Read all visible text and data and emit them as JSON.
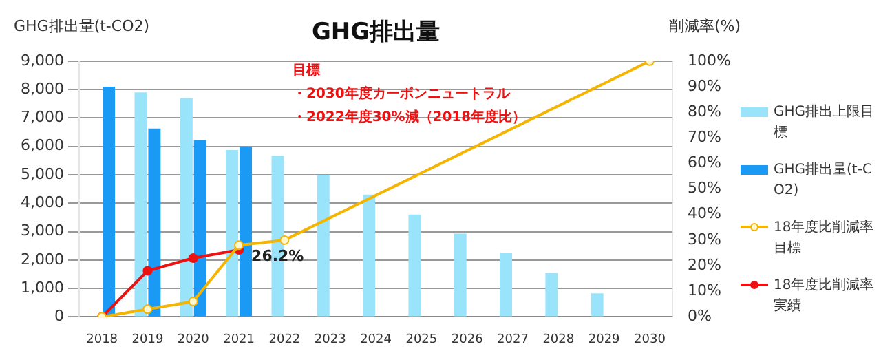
{
  "chart_data": {
    "type": "bar",
    "title": "GHG排出量",
    "ylabel": "GHG排出量(t-CO2)",
    "y2label": "削減率(%)",
    "categories": [
      "2018",
      "2019",
      "2020",
      "2021",
      "2022",
      "2023",
      "2024",
      "2025",
      "2026",
      "2027",
      "2028",
      "2029",
      "2030"
    ],
    "series": [
      {
        "name": "GHG排出上限目標",
        "color": "#99e3fb",
        "values": [
          null,
          7900,
          7700,
          5870,
          5670,
          5000,
          4300,
          3600,
          2930,
          2250,
          1550,
          830,
          null
        ]
      },
      {
        "name": "GHG排出量(t-CO2)",
        "color": "#1a9af5",
        "values": [
          8100,
          6630,
          6220,
          6000,
          null,
          null,
          null,
          null,
          null,
          null,
          null,
          null,
          null
        ]
      },
      {
        "name": "18年度比削減率目標",
        "type": "line",
        "axis": "y2",
        "color": "#f5b400",
        "marker": "circle",
        "values": [
          0,
          3,
          6,
          28,
          30,
          null,
          null,
          null,
          null,
          null,
          null,
          null,
          100
        ]
      },
      {
        "name": "18年度比削減率実績",
        "type": "line",
        "axis": "y2",
        "color": "#ee1111",
        "marker": "circle",
        "values": [
          0,
          18,
          23,
          26.2,
          null,
          null,
          null,
          null,
          null,
          null,
          null,
          null,
          null
        ],
        "value_labels": [
          null,
          null,
          null,
          "26.2%",
          null,
          null,
          null,
          null,
          null,
          null,
          null,
          null,
          null
        ]
      }
    ],
    "ylim": [
      0,
      9000
    ],
    "yticks": [
      {
        "value": 0,
        "label": "0"
      },
      {
        "value": 1000,
        "label": "1,000"
      },
      {
        "value": 2000,
        "label": "2,000"
      },
      {
        "value": 3000,
        "label": "3,000"
      },
      {
        "value": 4000,
        "label": "4,000"
      },
      {
        "value": 5000,
        "label": "5,000"
      },
      {
        "value": 6000,
        "label": "6,000"
      },
      {
        "value": 7000,
        "label": "7,000"
      },
      {
        "value": 8000,
        "label": "8,000"
      },
      {
        "value": 9000,
        "label": "9,000"
      }
    ],
    "y2lim": [
      0,
      100
    ],
    "y2ticks": [
      {
        "value": 0,
        "label": "0%"
      },
      {
        "value": 10,
        "label": "10%"
      },
      {
        "value": 20,
        "label": "20%"
      },
      {
        "value": 30,
        "label": "30%"
      },
      {
        "value": 40,
        "label": "40%"
      },
      {
        "value": 50,
        "label": "50%"
      },
      {
        "value": 60,
        "label": "60%"
      },
      {
        "value": 70,
        "label": "70%"
      },
      {
        "value": 80,
        "label": "80%"
      },
      {
        "value": 90,
        "label": "90%"
      },
      {
        "value": 100,
        "label": "100%"
      }
    ],
    "annotations": [
      "目標",
      "・2030年度カーボンニュートラル",
      "・2022年度30%減（2018年度比）"
    ],
    "grid": "y",
    "legend": "right"
  }
}
